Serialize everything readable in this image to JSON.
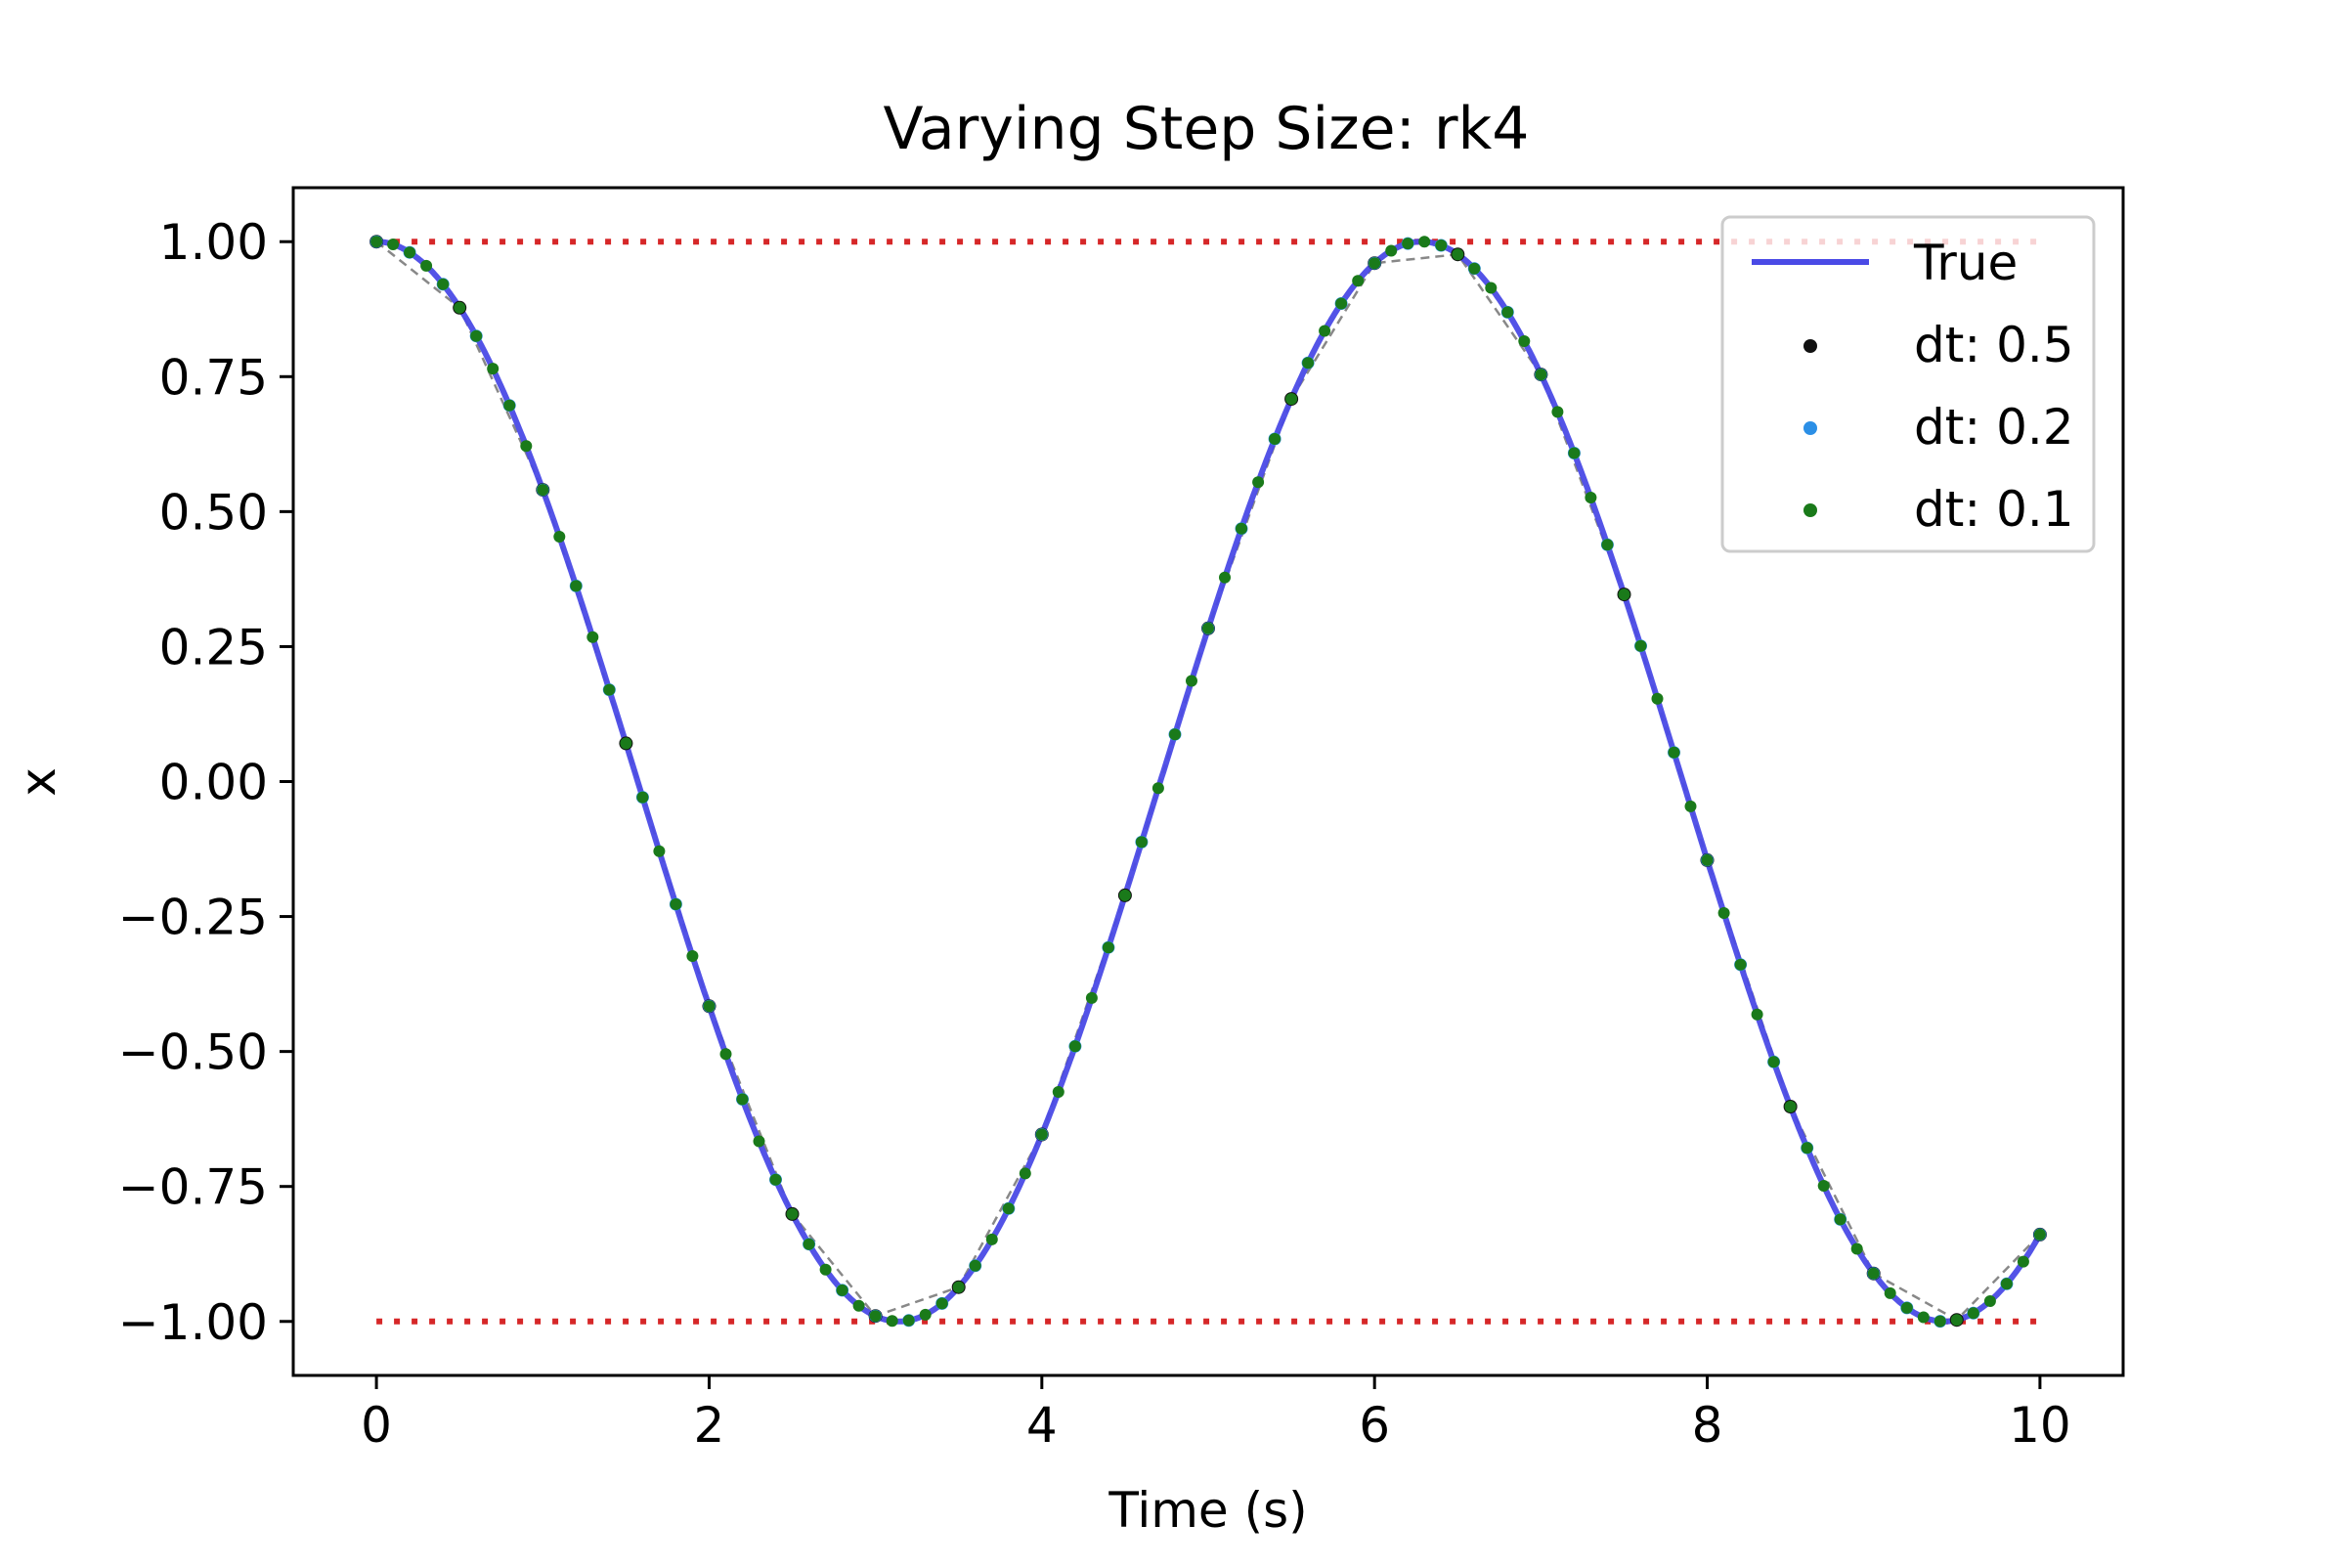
{
  "chart_data": {
    "type": "line",
    "title": "Varying Step Size: rk4",
    "xlabel": "Time (s)",
    "ylabel": "x",
    "xlim": [
      -0.5,
      10.5
    ],
    "ylim": [
      -1.1,
      1.1
    ],
    "xticks": [
      0,
      2,
      4,
      6,
      8,
      10
    ],
    "xtick_labels": [
      "0",
      "2",
      "4",
      "6",
      "8",
      "10"
    ],
    "yticks": [
      1.0,
      0.75,
      0.5,
      0.25,
      0.0,
      -0.25,
      -0.5,
      -0.75,
      -1.0
    ],
    "ytick_labels": [
      "1.00",
      "0.75",
      "0.50",
      "0.25",
      "0.00",
      "−0.25",
      "−0.50",
      "−0.75",
      "−1.00"
    ],
    "grid": false,
    "legend_position": "top-right",
    "reference_lines": [
      {
        "y": 1.0,
        "x_range": [
          0,
          10
        ],
        "style": "dotted",
        "color": "#d62728"
      },
      {
        "y": -1.0,
        "x_range": [
          0,
          10
        ],
        "style": "dotted",
        "color": "#d62728"
      }
    ],
    "series": [
      {
        "name": "True",
        "kind": "line",
        "color": "#4a4ae6",
        "x_range": [
          0,
          10
        ],
        "function": "cos(t)"
      },
      {
        "name": "dt: 0.5",
        "kind": "markers",
        "color": "#111111",
        "x_range": [
          0,
          10
        ],
        "dt": 0.5,
        "function": "cos(t)"
      },
      {
        "name": "dt: 0.2",
        "kind": "markers",
        "color": "#2b8fe6",
        "x_range": [
          0,
          10
        ],
        "dt": 0.2,
        "function": "cos(t)"
      },
      {
        "name": "dt: 0.1",
        "kind": "markers",
        "color": "#1a7a1a",
        "x_range": [
          0,
          10
        ],
        "dt": 0.1,
        "function": "cos(t)"
      }
    ]
  }
}
